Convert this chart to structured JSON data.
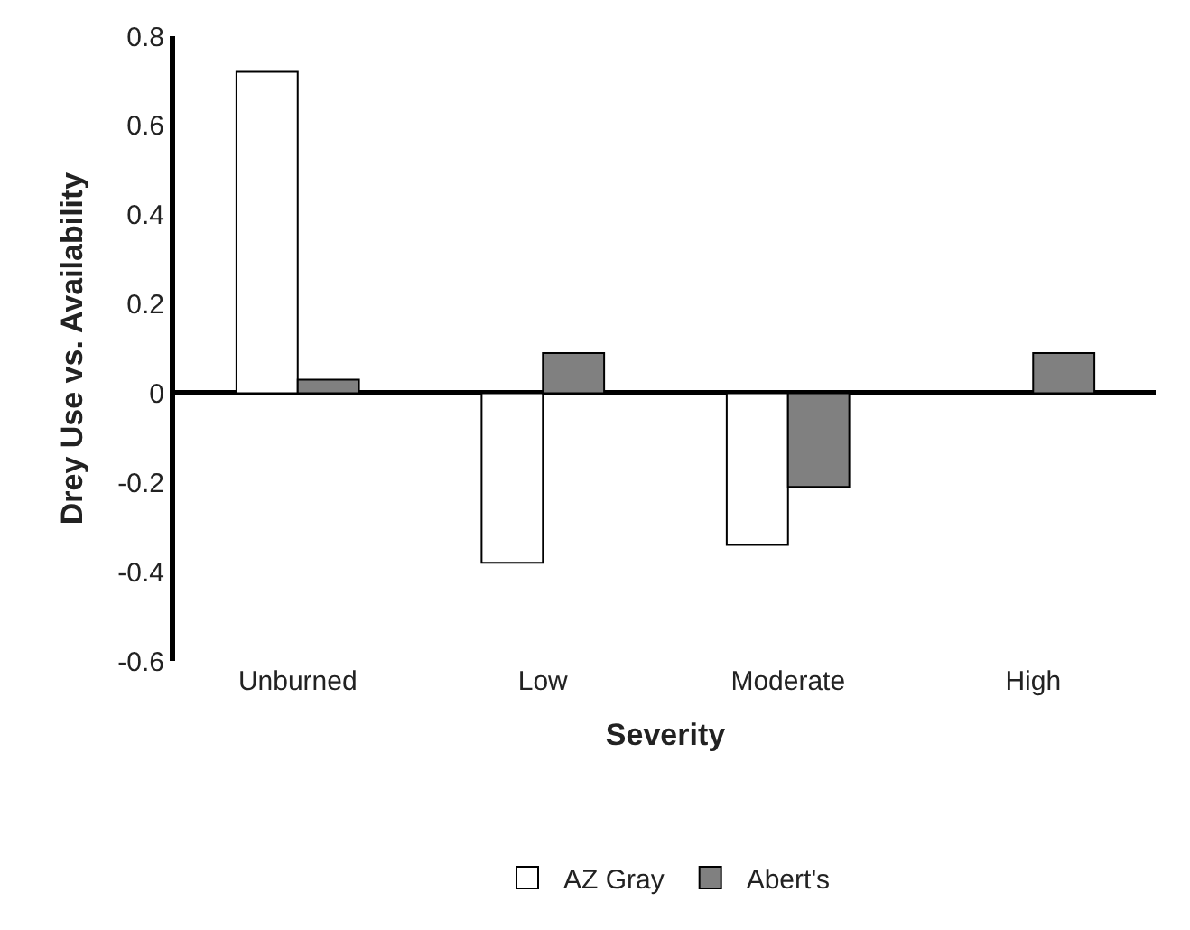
{
  "chart_data": {
    "type": "bar",
    "xlabel": "Severity",
    "ylabel": "Drey Use vs. Availability",
    "categories": [
      "Unburned",
      "Low",
      "Moderate",
      "High"
    ],
    "series": [
      {
        "name": "AZ Gray",
        "color": "#ffffff",
        "values": [
          0.72,
          -0.38,
          -0.34,
          null
        ]
      },
      {
        "name": "Abert's",
        "color": "#808080",
        "values": [
          0.03,
          0.09,
          -0.21,
          0.09
        ]
      }
    ],
    "ylim": [
      -0.6,
      0.8
    ],
    "yticks": [
      -0.6,
      -0.4,
      -0.2,
      0,
      0.2,
      0.4,
      0.6,
      0.8
    ],
    "legend": "bottom"
  }
}
